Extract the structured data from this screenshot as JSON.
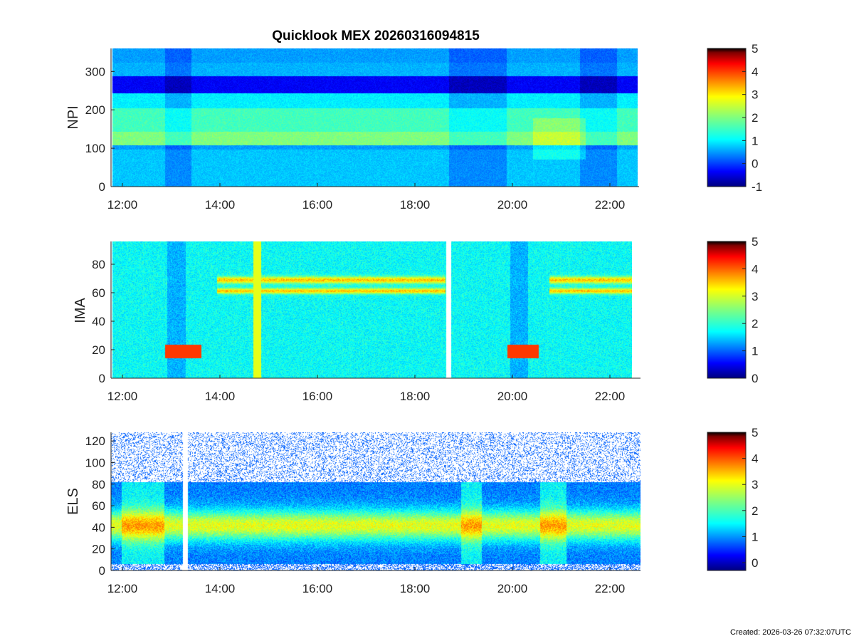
{
  "title": "Quicklook MEX 20260316094815",
  "footer": "Created: 2026-03-26 07:32:07UTC",
  "chart_data": [
    {
      "type": "heatmap",
      "ylabel": "NPI",
      "x_ticks": [
        "12:00",
        "14:00",
        "16:00",
        "18:00",
        "20:00",
        "22:00"
      ],
      "xlim": [
        "11:50",
        "22:40"
      ],
      "ylim": [
        0,
        360
      ],
      "y_ticks": [
        0,
        100,
        200,
        300
      ],
      "colorbar": {
        "range": [
          -1,
          5
        ],
        "ticks": [
          -1,
          0,
          1,
          2,
          3,
          4,
          5
        ]
      }
    },
    {
      "type": "heatmap",
      "ylabel": "IMA",
      "x_ticks": [
        "12:00",
        "14:00",
        "16:00",
        "18:00",
        "20:00",
        "22:00"
      ],
      "xlim": [
        "11:50",
        "22:40"
      ],
      "ylim": [
        0,
        96
      ],
      "y_ticks": [
        0,
        20,
        40,
        60,
        80
      ],
      "colorbar": {
        "range": [
          0,
          5
        ],
        "ticks": [
          0,
          1,
          2,
          3,
          4,
          5
        ]
      }
    },
    {
      "type": "heatmap",
      "ylabel": "ELS",
      "x_ticks": [
        "12:00",
        "14:00",
        "16:00",
        "18:00",
        "20:00",
        "22:00"
      ],
      "xlim": [
        "11:50",
        "22:40"
      ],
      "ylim": [
        0,
        128
      ],
      "y_ticks": [
        0,
        20,
        40,
        60,
        80,
        100,
        120
      ],
      "colorbar": {
        "range": [
          -0.3,
          5
        ],
        "ticks": [
          0,
          1,
          2,
          3,
          4,
          5
        ]
      }
    }
  ]
}
